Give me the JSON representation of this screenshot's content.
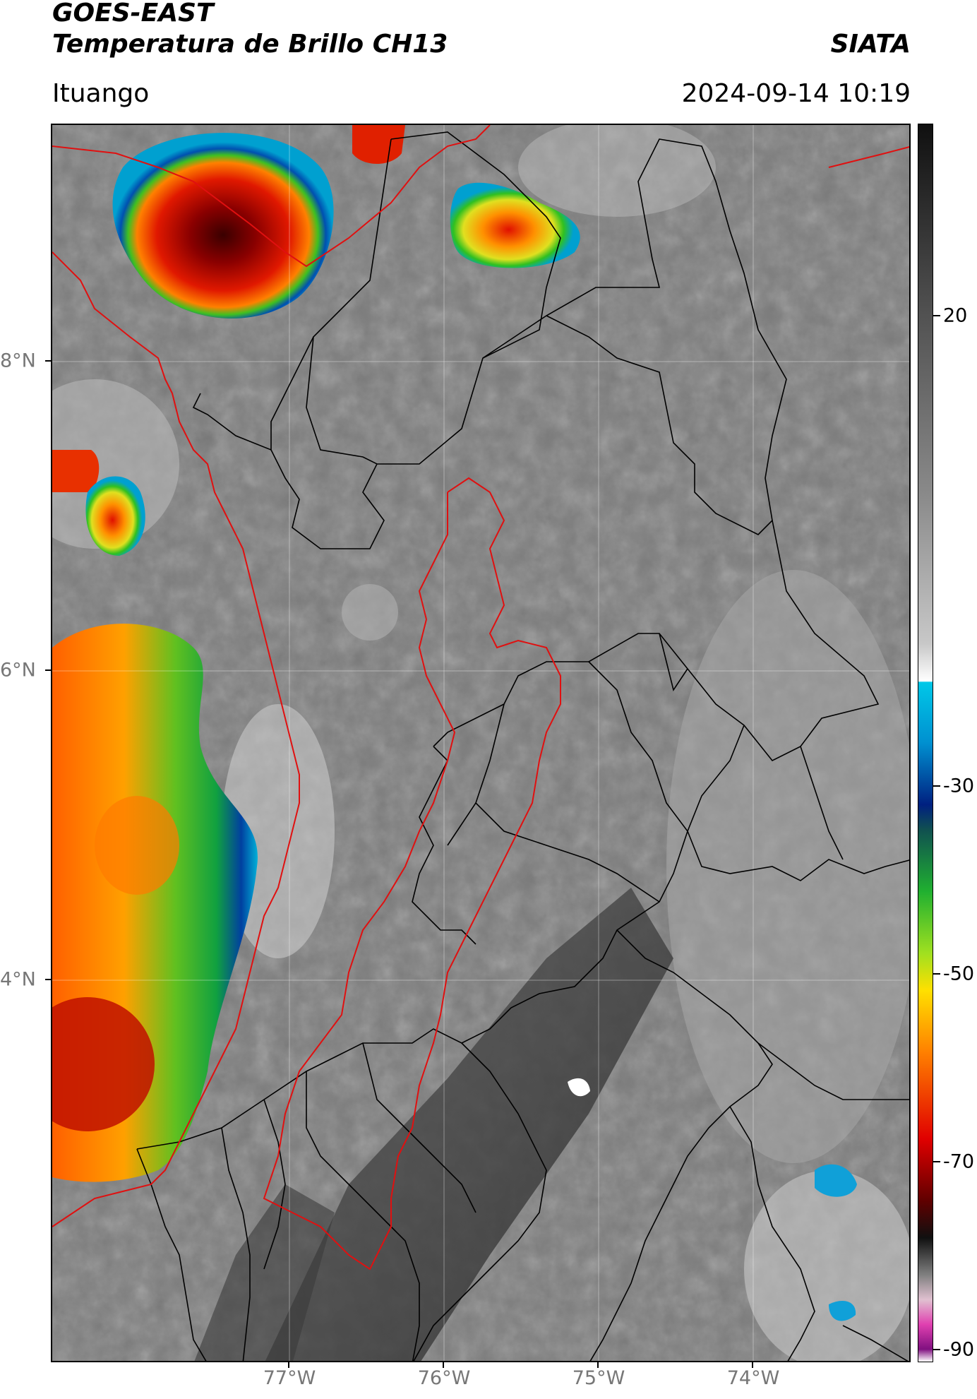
{
  "header": {
    "title_line1": "GOES-EAST",
    "title_line2": "Temperatura de Brillo CH13",
    "organization": "SIATA",
    "region": "Ituango",
    "datetime": "2024-09-14 10:19"
  },
  "map": {
    "latitude_labels": [
      "8°N",
      "6°N",
      "4°N"
    ],
    "longitude_labels": [
      "77°W",
      "76°W",
      "75°W",
      "74°W"
    ],
    "colorbar_ticks": [
      "20",
      "-30",
      "-50",
      "-70",
      "-90"
    ],
    "colors": {
      "boundary_black": "#000000",
      "boundary_red": "#e01010",
      "background_gray": "#7a7a7a",
      "cold_cloud_red": "#d01000",
      "cold_cloud_green": "#20c020",
      "cold_cloud_blue": "#0070d0"
    },
    "icons": {
      "colorbar": "brightness-temperature-scale"
    }
  }
}
